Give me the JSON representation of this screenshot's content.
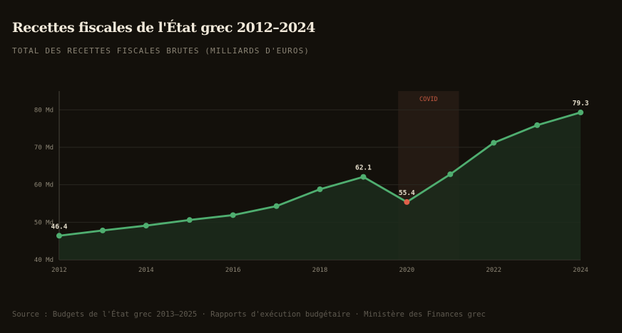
{
  "title": "Recettes fiscales de l'État grec 2012–2024",
  "subtitle": "TOTAL DES RECETTES FISCALES BRUTES (MILLIARDS D'EUROS)",
  "source": "Source : Budgets de l'État grec 2013–2025 · Rapports d'exécution budgétaire · Ministère des Finances grec",
  "colors": {
    "line": "#4fae70",
    "area": "#1c2b1c",
    "highlight_point": "#e0604a",
    "band": "#241a13",
    "band_label": "#c65a42",
    "grid": "#2a2720",
    "axis": "#4a463d"
  },
  "chart_data": {
    "type": "line",
    "x": [
      2012,
      2013,
      2014,
      2015,
      2016,
      2017,
      2018,
      2019,
      2020,
      2021,
      2022,
      2023,
      2024
    ],
    "values": [
      46.4,
      47.8,
      49.1,
      50.6,
      51.9,
      54.3,
      58.8,
      62.1,
      55.4,
      62.8,
      71.2,
      75.9,
      79.3
    ],
    "ylim": [
      40,
      85
    ],
    "xlim": [
      2012,
      2024
    ],
    "xticks": [
      2012,
      2014,
      2016,
      2018,
      2020,
      2022,
      2024
    ],
    "xtick_labels": [
      "2012",
      "2014",
      "2016",
      "2018",
      "2020",
      "2022",
      "2024"
    ],
    "yticks": [
      40,
      50,
      60,
      70,
      80
    ],
    "ytick_labels": [
      "40 Md",
      "50 Md",
      "60 Md",
      "70 Md",
      "80 Md"
    ],
    "data_labels": [
      {
        "x": 2012,
        "text": "46.4"
      },
      {
        "x": 2019,
        "text": "62.1"
      },
      {
        "x": 2020,
        "text": "55.4"
      },
      {
        "x": 2024,
        "text": "79.3"
      }
    ],
    "highlight_x": 2020,
    "band": {
      "from": 2019.8,
      "to": 2021.2,
      "label": "COVID"
    },
    "grid": true,
    "area_fill": true
  }
}
